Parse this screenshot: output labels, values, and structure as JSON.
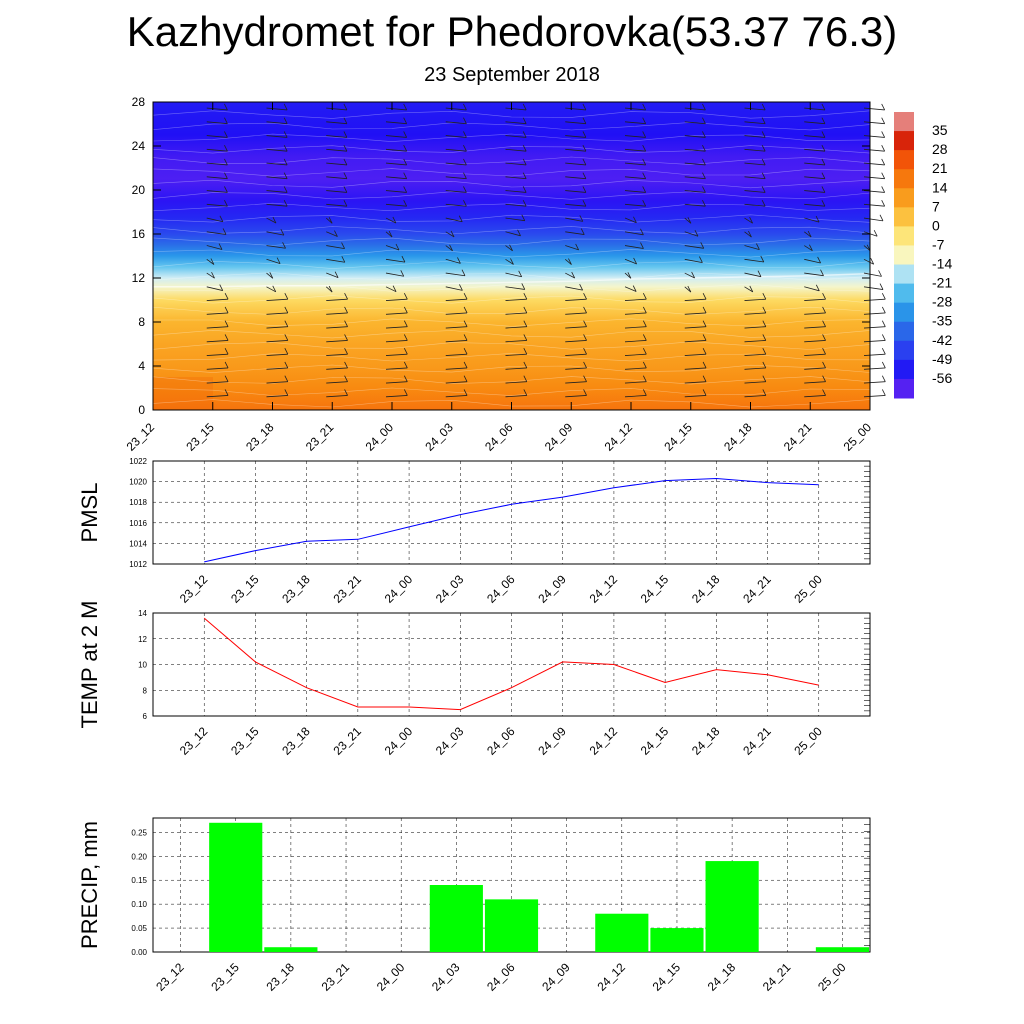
{
  "title": "Kazhydromet for Phedorovka(53.37 76.3)",
  "subtitle": "23 September 2018",
  "time_labels": [
    "23_12",
    "23_15",
    "23_18",
    "23_21",
    "24_00",
    "24_03",
    "24_06",
    "24_09",
    "24_12",
    "24_15",
    "24_18",
    "24_21",
    "25_00"
  ],
  "chart_data": [
    {
      "type": "heatmap",
      "name": "upper-air",
      "title": "Kazhydromet for Phedorovka(53.37 76.3)",
      "subtitle": "23 September 2018",
      "x": [
        "23_12",
        "23_15",
        "23_18",
        "23_21",
        "24_00",
        "24_03",
        "24_06",
        "24_09",
        "24_12",
        "24_15",
        "24_18",
        "24_21",
        "25_00"
      ],
      "y_ticks": [
        0,
        4,
        8,
        12,
        16,
        20,
        24,
        28
      ],
      "ylim": [
        0,
        28
      ],
      "colorbar_ticks": [
        35,
        28,
        21,
        14,
        7,
        0,
        -7,
        -14,
        -21,
        -28,
        -35,
        -42,
        -49,
        -56
      ],
      "colorbar_range": [
        -60,
        38
      ],
      "freezing_level": [
        11.2,
        11.2,
        11.3,
        11.3,
        11.4,
        11.5,
        11.6,
        11.7,
        11.9,
        12.0,
        12.1,
        12.2,
        12.4
      ],
      "wind_barbs": true,
      "colors": {
        "cold": "#2b14ee",
        "cool": "#2f9ce8",
        "neutral": "#fdf3b8",
        "warm": "#f89a0e",
        "hot": "#f56a08"
      }
    },
    {
      "type": "line",
      "name": "pmsl",
      "ylabel": "PMSL",
      "x": [
        "23_12",
        "23_15",
        "23_18",
        "23_21",
        "24_00",
        "24_03",
        "24_06",
        "24_09",
        "24_12",
        "24_15",
        "24_18",
        "24_21",
        "25_00"
      ],
      "values": [
        1012.2,
        1013.3,
        1014.2,
        1014.4,
        1015.6,
        1016.8,
        1017.8,
        1018.5,
        1019.4,
        1020.1,
        1020.3,
        1019.9,
        1019.7
      ],
      "ylim": [
        1012,
        1022
      ],
      "y_ticks": [
        1012,
        1014,
        1016,
        1018,
        1020,
        1022
      ],
      "color": "#0000ff",
      "grid": true
    },
    {
      "type": "line",
      "name": "temp",
      "ylabel": "TEMP at 2 M",
      "x": [
        "23_12",
        "23_15",
        "23_18",
        "23_21",
        "24_00",
        "24_03",
        "24_06",
        "24_09",
        "24_12",
        "24_15",
        "24_18",
        "24_21",
        "25_00"
      ],
      "values": [
        13.6,
        10.2,
        8.2,
        6.7,
        6.7,
        6.5,
        8.2,
        10.2,
        10.0,
        8.6,
        9.6,
        9.2,
        8.4
      ],
      "ylim": [
        6,
        14
      ],
      "y_ticks": [
        6,
        8,
        10,
        12,
        14
      ],
      "color": "#ff0000",
      "grid": true
    },
    {
      "type": "bar",
      "name": "precip",
      "ylabel": "PRECIP, mm",
      "categories": [
        "23_12",
        "23_15",
        "23_18",
        "23_21",
        "24_00",
        "24_03",
        "24_06",
        "24_09",
        "24_12",
        "24_15",
        "24_18",
        "24_21",
        "25_00"
      ],
      "values": [
        0,
        0.27,
        0.01,
        0,
        0,
        0.14,
        0.11,
        0,
        0.08,
        0.05,
        0.19,
        0,
        0.01
      ],
      "ylim": [
        0,
        0.28
      ],
      "y_ticks": [
        "0.00",
        "0.05",
        "0.10",
        "0.15",
        "0.20",
        "0.25"
      ],
      "color": "#00ff00",
      "grid": true
    }
  ]
}
